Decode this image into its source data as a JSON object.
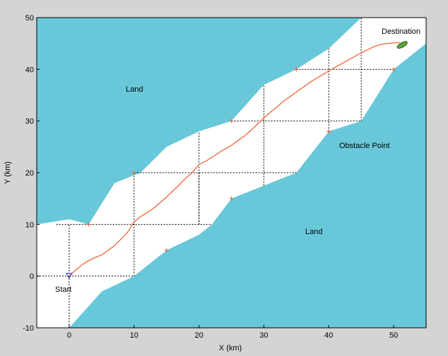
{
  "colors": {
    "frame_bg": "#d4d4d4",
    "land": "#68c8da",
    "water": "#ffffff",
    "path": "#f05a28",
    "grid": "#000000",
    "start_marker": "#3b3bc8",
    "ship": "#5aa83a"
  },
  "chart_data": {
    "type": "line",
    "title": "",
    "xlabel": "X (km)",
    "ylabel": "Y (km)",
    "xlim": [
      -5,
      55
    ],
    "ylim": [
      -10,
      50
    ],
    "xticks": [
      0,
      10,
      20,
      30,
      40,
      50
    ],
    "yticks": [
      -10,
      0,
      10,
      20,
      30,
      40,
      50
    ],
    "annotations": {
      "land_top": "Land",
      "land_bottom": "Land",
      "obstacle": "Obstacle Point",
      "start": "Start",
      "destination": "Destination"
    },
    "land_regions": [
      [
        [
          -5,
          10
        ],
        [
          0,
          11
        ],
        [
          3,
          10
        ],
        [
          7,
          18
        ],
        [
          11,
          20
        ],
        [
          15,
          25
        ],
        [
          20,
          28
        ],
        [
          25,
          30
        ],
        [
          30,
          37
        ],
        [
          35,
          40
        ],
        [
          40,
          44
        ],
        [
          45,
          50
        ],
        [
          -5,
          50
        ]
      ],
      [
        [
          0,
          -10
        ],
        [
          5,
          -3
        ],
        [
          10,
          0
        ],
        [
          15,
          5
        ],
        [
          20,
          8
        ],
        [
          22,
          10
        ],
        [
          25,
          15
        ],
        [
          30,
          17.5
        ],
        [
          35,
          20
        ],
        [
          40,
          28
        ],
        [
          45,
          30
        ],
        [
          50,
          40
        ],
        [
          55,
          45
        ],
        [
          55,
          -10
        ]
      ]
    ],
    "channel_top_edge": [
      [
        45,
        50
      ],
      [
        55,
        50
      ],
      [
        55,
        45
      ]
    ],
    "obstacle_points": [
      [
        3,
        10
      ],
      [
        10,
        20
      ],
      [
        15,
        5
      ],
      [
        25,
        15
      ],
      [
        25,
        30
      ],
      [
        35,
        40
      ],
      [
        40,
        28
      ],
      [
        50,
        40
      ]
    ],
    "grid_lines": [
      [
        [
          -5,
          0
        ],
        [
          0,
          0
        ]
      ],
      [
        [
          0,
          0
        ],
        [
          10,
          0
        ]
      ],
      [
        [
          0,
          -10
        ],
        [
          0,
          10
        ]
      ],
      [
        [
          10,
          0
        ],
        [
          10,
          20
        ]
      ],
      [
        [
          -2,
          10
        ],
        [
          22,
          10
        ]
      ],
      [
        [
          20,
          20
        ],
        [
          20,
          10
        ]
      ],
      [
        [
          10,
          20
        ],
        [
          35,
          20
        ]
      ],
      [
        [
          20,
          10
        ],
        [
          20,
          28
        ]
      ],
      [
        [
          25,
          30
        ],
        [
          45,
          30
        ]
      ],
      [
        [
          30,
          17.5
        ],
        [
          30,
          37
        ]
      ],
      [
        [
          35,
          40
        ],
        [
          50,
          40
        ]
      ],
      [
        [
          40,
          28
        ],
        [
          40,
          44
        ]
      ],
      [
        [
          45,
          30
        ],
        [
          45,
          50
        ]
      ]
    ],
    "series": [
      {
        "x": [
          0,
          1,
          2,
          3,
          4,
          5,
          6,
          7,
          8,
          9,
          10,
          11,
          12,
          13,
          14,
          15,
          16,
          17,
          18,
          19,
          20,
          21,
          22,
          23,
          24,
          25,
          26,
          27,
          28,
          29,
          30,
          31,
          32,
          33,
          34,
          35,
          36,
          37,
          38,
          39,
          40,
          41,
          42,
          43,
          44,
          45,
          46,
          47,
          48,
          49,
          50,
          51
        ],
        "y": [
          0,
          1.2,
          2.2,
          3.0,
          3.6,
          4.1,
          5.0,
          5.9,
          7.2,
          8.5,
          10.5,
          11.5,
          12.3,
          13.1,
          14.2,
          15.3,
          16.5,
          17.7,
          19.0,
          20.1,
          21.6,
          22.2,
          23.0,
          23.8,
          24.6,
          25.3,
          26.2,
          27.1,
          28.2,
          29.4,
          30.6,
          31.7,
          32.7,
          33.8,
          34.7,
          35.6,
          36.5,
          37.4,
          38.2,
          38.9,
          39.7,
          40.4,
          41.1,
          41.8,
          42.5,
          43.2,
          43.8,
          44.4,
          44.8,
          45.0,
          45.1,
          45.2
        ]
      }
    ],
    "start": [
      0,
      0
    ],
    "destination": [
      51,
      45
    ],
    "grid": false,
    "legend": "none"
  }
}
